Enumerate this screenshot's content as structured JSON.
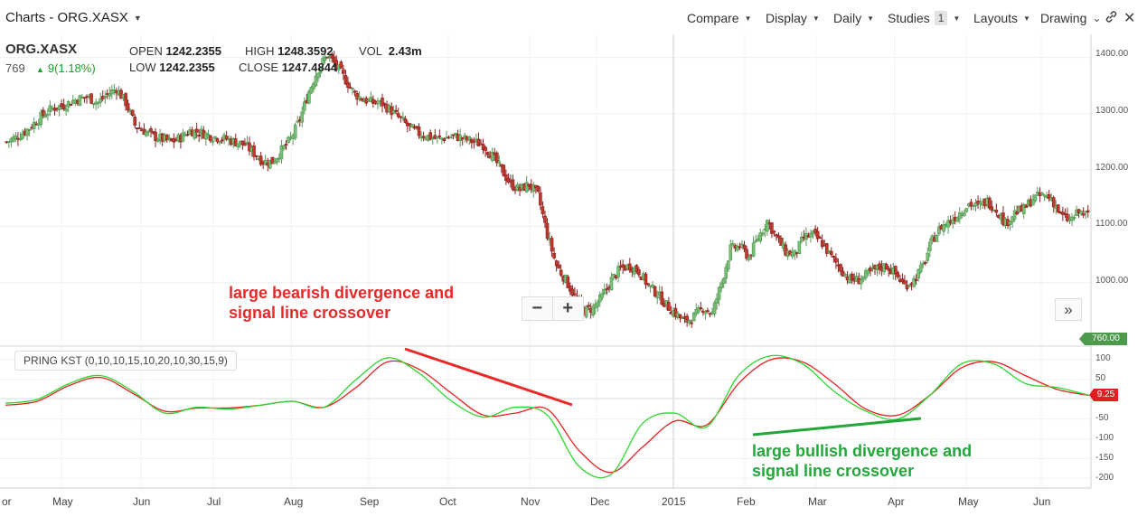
{
  "toolbar": {
    "title": "Charts - ORG.XASX",
    "menus": [
      "Compare",
      "Display",
      "Daily",
      "Studies",
      "Layouts",
      "Drawing"
    ],
    "studies_count": "1"
  },
  "quote": {
    "symbol": "ORG.XASX",
    "last": "769",
    "change": "9(1.18%)",
    "open_label": "OPEN",
    "open": "1242.2355",
    "high_label": "HIGH",
    "high": "1248.3592",
    "vol_label": "VOL",
    "vol": "2.43m",
    "low_label": "LOW",
    "low": "1242.2355",
    "close_label": "CLOSE",
    "close": "1247.4844"
  },
  "price_axis": [
    "1400.00",
    "1300.00",
    "1200.00",
    "1100.00",
    "1000.00"
  ],
  "price_last_tag": "760.00",
  "study": {
    "label": "PRING KST (0,10,10,15,10,20,10,30,15,9)",
    "axis": [
      "100",
      "50",
      "-50",
      "-100",
      "-150",
      "-200"
    ],
    "last_tag": "9.25"
  },
  "time_axis": [
    "or",
    "May",
    "Jun",
    "Jul",
    "Aug",
    "Sep",
    "Oct",
    "Nov",
    "Dec",
    "2015",
    "Feb",
    "Mar",
    "Apr",
    "May",
    "Jun"
  ],
  "annotations": {
    "bearish": "large bearish divergence and\nsignal line crossover",
    "bullish": "large bullish divergence and\nsignal line crossover"
  },
  "colors": {
    "up_candle": "#77c277",
    "down_candle": "#c0392b",
    "kst_line": "#2ed62e",
    "signal_line": "#e52222",
    "bearish": "#e62a2a",
    "bullish": "#22a83a"
  },
  "chart_data": {
    "type": "candlestick",
    "price_series_close": [
      [
        0,
        1250
      ],
      [
        5,
        1260
      ],
      [
        10,
        1275
      ],
      [
        15,
        1295
      ],
      [
        20,
        1310
      ],
      [
        25,
        1315
      ],
      [
        30,
        1325
      ],
      [
        35,
        1330
      ],
      [
        40,
        1320
      ],
      [
        44,
        1335
      ],
      [
        48,
        1345
      ],
      [
        52,
        1320
      ],
      [
        56,
        1280
      ],
      [
        60,
        1270
      ],
      [
        64,
        1260
      ],
      [
        68,
        1255
      ],
      [
        72,
        1250
      ],
      [
        76,
        1258
      ],
      [
        80,
        1270
      ],
      [
        84,
        1268
      ],
      [
        88,
        1262
      ],
      [
        92,
        1258
      ],
      [
        96,
        1255
      ],
      [
        100,
        1250
      ],
      [
        104,
        1245
      ],
      [
        108,
        1230
      ],
      [
        112,
        1215
      ],
      [
        116,
        1215
      ],
      [
        120,
        1235
      ],
      [
        124,
        1255
      ],
      [
        128,
        1290
      ],
      [
        132,
        1340
      ],
      [
        136,
        1380
      ],
      [
        140,
        1405
      ],
      [
        144,
        1385
      ],
      [
        148,
        1360
      ],
      [
        152,
        1335
      ],
      [
        156,
        1325
      ],
      [
        160,
        1320
      ],
      [
        164,
        1318
      ],
      [
        168,
        1305
      ],
      [
        172,
        1290
      ],
      [
        176,
        1275
      ],
      [
        180,
        1265
      ],
      [
        184,
        1260
      ],
      [
        188,
        1255
      ],
      [
        192,
        1258
      ],
      [
        196,
        1260
      ],
      [
        200,
        1255
      ],
      [
        204,
        1250
      ],
      [
        208,
        1245
      ],
      [
        212,
        1225
      ],
      [
        216,
        1200
      ],
      [
        220,
        1175
      ],
      [
        224,
        1165
      ],
      [
        228,
        1175
      ],
      [
        232,
        1155
      ],
      [
        236,
        1085
      ],
      [
        240,
        1030
      ],
      [
        244,
        1005
      ],
      [
        248,
        975
      ],
      [
        252,
        950
      ],
      [
        256,
        955
      ],
      [
        260,
        975
      ],
      [
        264,
        1005
      ],
      [
        268,
        1025
      ],
      [
        272,
        1030
      ],
      [
        276,
        1020
      ],
      [
        280,
        995
      ],
      [
        284,
        980
      ],
      [
        288,
        960
      ],
      [
        292,
        945
      ],
      [
        296,
        930
      ],
      [
        300,
        940
      ],
      [
        304,
        955
      ],
      [
        308,
        945
      ],
      [
        312,
        1000
      ],
      [
        316,
        1060
      ],
      [
        320,
        1065
      ],
      [
        324,
        1045
      ],
      [
        328,
        1080
      ],
      [
        332,
        1110
      ],
      [
        336,
        1080
      ],
      [
        340,
        1055
      ],
      [
        344,
        1050
      ],
      [
        348,
        1080
      ],
      [
        352,
        1085
      ],
      [
        356,
        1070
      ],
      [
        360,
        1045
      ],
      [
        364,
        1025
      ],
      [
        368,
        1005
      ],
      [
        372,
        1005
      ],
      [
        376,
        1015
      ],
      [
        380,
        1025
      ],
      [
        384,
        1030
      ],
      [
        388,
        1015
      ],
      [
        392,
        995
      ],
      [
        396,
        1005
      ],
      [
        400,
        1030
      ],
      [
        404,
        1075
      ],
      [
        408,
        1100
      ],
      [
        412,
        1110
      ],
      [
        416,
        1125
      ],
      [
        420,
        1140
      ],
      [
        424,
        1135
      ],
      [
        428,
        1145
      ],
      [
        432,
        1130
      ],
      [
        436,
        1105
      ],
      [
        440,
        1125
      ],
      [
        444,
        1130
      ],
      [
        448,
        1150
      ],
      [
        452,
        1155
      ],
      [
        456,
        1150
      ],
      [
        460,
        1120
      ],
      [
        464,
        1110
      ],
      [
        468,
        1125
      ],
      [
        472,
        1120
      ]
    ],
    "kst": [
      [
        0,
        -10
      ],
      [
        20,
        0
      ],
      [
        40,
        40
      ],
      [
        60,
        60
      ],
      [
        80,
        20
      ],
      [
        100,
        -35
      ],
      [
        120,
        -20
      ],
      [
        140,
        -25
      ],
      [
        160,
        -15
      ],
      [
        180,
        -5
      ],
      [
        200,
        -20
      ],
      [
        220,
        50
      ],
      [
        240,
        105
      ],
      [
        260,
        65
      ],
      [
        280,
        -5
      ],
      [
        300,
        -45
      ],
      [
        320,
        -20
      ],
      [
        340,
        -40
      ],
      [
        360,
        -170
      ],
      [
        380,
        -190
      ],
      [
        400,
        -60
      ],
      [
        420,
        -35
      ],
      [
        440,
        -70
      ],
      [
        460,
        60
      ],
      [
        480,
        110
      ],
      [
        500,
        90
      ],
      [
        520,
        20
      ],
      [
        540,
        -30
      ],
      [
        560,
        -50
      ],
      [
        580,
        10
      ],
      [
        600,
        90
      ],
      [
        620,
        90
      ],
      [
        640,
        40
      ],
      [
        660,
        30
      ],
      [
        680,
        10
      ]
    ],
    "signal": [
      [
        0,
        -15
      ],
      [
        20,
        -5
      ],
      [
        40,
        35
      ],
      [
        60,
        55
      ],
      [
        80,
        15
      ],
      [
        100,
        -30
      ],
      [
        120,
        -22
      ],
      [
        140,
        -22
      ],
      [
        160,
        -15
      ],
      [
        180,
        -5
      ],
      [
        200,
        -20
      ],
      [
        220,
        30
      ],
      [
        240,
        95
      ],
      [
        260,
        75
      ],
      [
        280,
        15
      ],
      [
        300,
        -40
      ],
      [
        320,
        -35
      ],
      [
        340,
        -25
      ],
      [
        360,
        -130
      ],
      [
        380,
        -185
      ],
      [
        400,
        -120
      ],
      [
        420,
        -55
      ],
      [
        440,
        -65
      ],
      [
        460,
        40
      ],
      [
        480,
        100
      ],
      [
        500,
        95
      ],
      [
        520,
        40
      ],
      [
        540,
        -25
      ],
      [
        560,
        -40
      ],
      [
        580,
        10
      ],
      [
        600,
        80
      ],
      [
        620,
        95
      ],
      [
        640,
        60
      ],
      [
        660,
        25
      ],
      [
        680,
        10
      ]
    ],
    "price_ylim": [
      900,
      1430
    ],
    "kst_ylim": [
      -220,
      130
    ]
  }
}
